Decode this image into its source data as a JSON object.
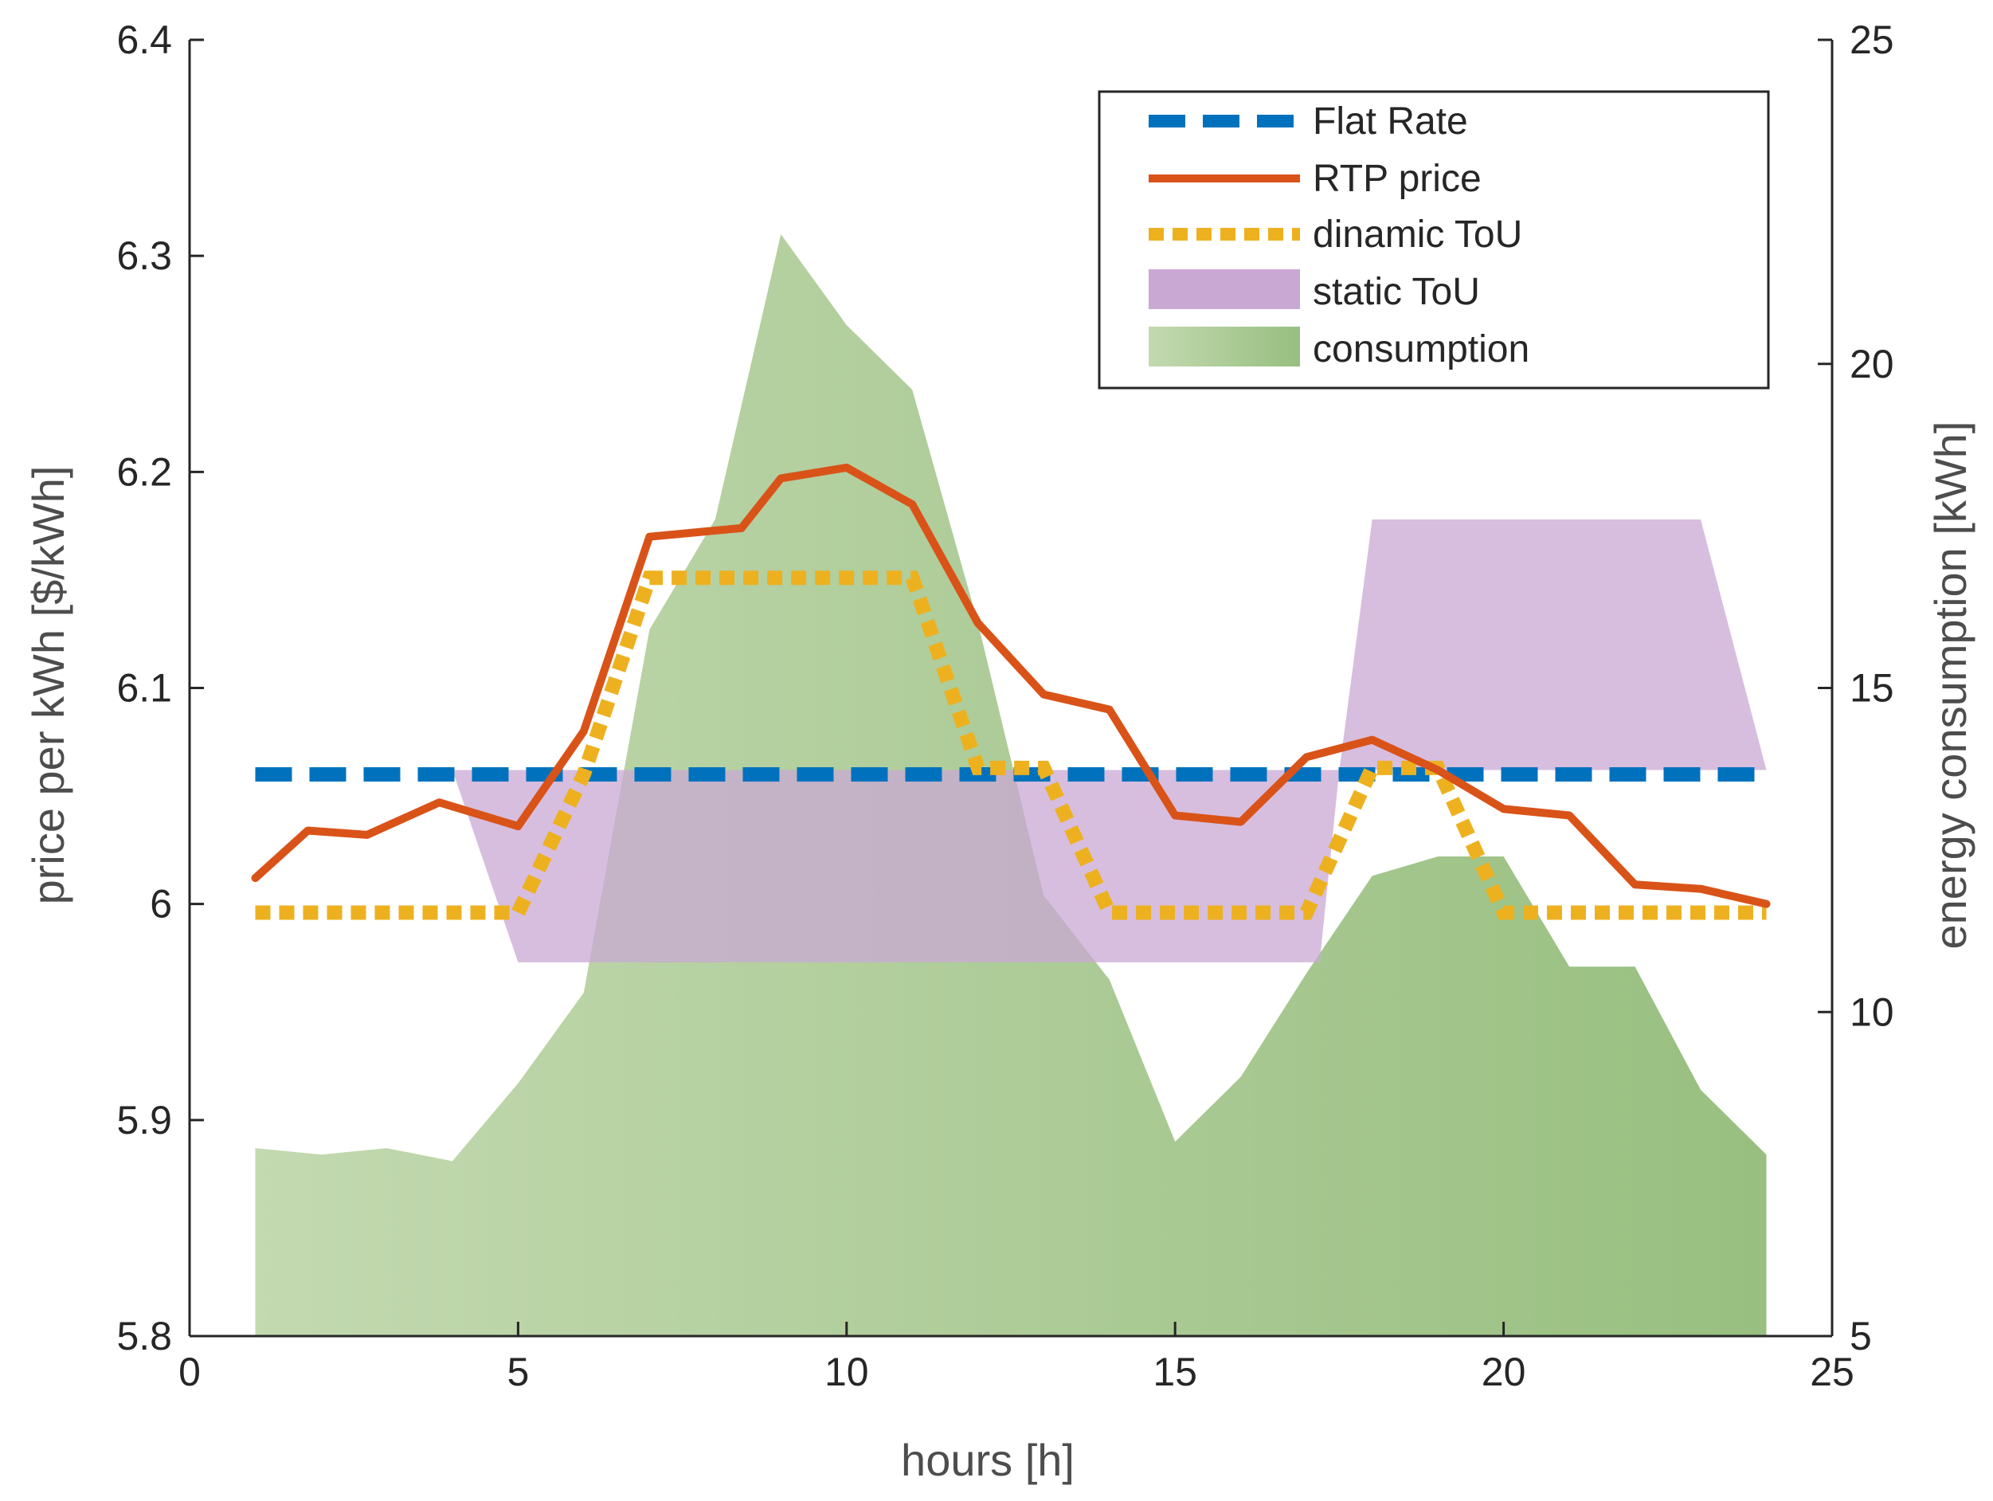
{
  "chart_data": {
    "type": "area",
    "xlabel": "hours [h]",
    "ylabel_left": "price per kWh [$/kWh]",
    "ylabel_right": "energy consumption [kWh]",
    "xlim": [
      0,
      25
    ],
    "ylim_left": [
      5.8,
      6.4
    ],
    "ylim_right": [
      5,
      25
    ],
    "x_ticks": [
      "0",
      "5",
      "10",
      "15",
      "20",
      "25"
    ],
    "y_left_ticks": [
      "5.8",
      "5.9",
      "6",
      "6.1",
      "6.2",
      "6.3",
      "6.4"
    ],
    "y_right_ticks": [
      "5",
      "10",
      "15",
      "20",
      "25"
    ],
    "grid": false,
    "legend_position": "top-right",
    "colors": {
      "flat": "#0072BD",
      "rtp": "#D95319",
      "dynamic": "#EDB120",
      "static": "#C9A8D4",
      "consumption_light": "#C3D9B0",
      "consumption_dark": "#98BF80"
    },
    "series": [
      {
        "name": "Flat Rate",
        "axis": "left",
        "style": "dashed",
        "x": [
          1,
          24
        ],
        "y": [
          6.06,
          6.06
        ]
      },
      {
        "name": "RTP price",
        "axis": "left",
        "style": "solid",
        "x": [
          1,
          1.8,
          2.7,
          3.8,
          5,
          6,
          7,
          8.4,
          9,
          10,
          11,
          12,
          13,
          14,
          15,
          16,
          17,
          18,
          19,
          20,
          21,
          22,
          23,
          24
        ],
        "y": [
          6.012,
          6.034,
          6.032,
          6.047,
          6.036,
          6.08,
          6.17,
          6.174,
          6.197,
          6.202,
          6.185,
          6.13,
          6.097,
          6.09,
          6.041,
          6.038,
          6.068,
          6.076,
          6.062,
          6.044,
          6.041,
          6.009,
          6.007,
          6.0
        ]
      },
      {
        "name": "dinamic ToU",
        "axis": "left",
        "style": "dotted",
        "x": [
          1,
          5,
          6,
          7,
          8,
          11,
          12,
          13,
          14,
          17,
          18,
          19,
          20,
          24
        ],
        "y": [
          5.996,
          5.996,
          6.06,
          6.151,
          6.151,
          6.151,
          6.063,
          6.063,
          5.996,
          5.996,
          6.063,
          6.063,
          5.996,
          5.996
        ]
      },
      {
        "name": "static ToU",
        "axis": "left",
        "style": "band",
        "x": [
          1,
          4,
          5,
          17.2,
          17.5,
          18,
          23,
          24
        ],
        "upper": [
          6.062,
          6.062,
          6.062,
          6.062,
          6.062,
          6.178,
          6.178,
          6.062
        ],
        "lower": [
          6.062,
          6.062,
          5.973,
          5.973,
          6.062,
          6.062,
          6.062,
          6.062
        ]
      },
      {
        "name": "consumption",
        "axis": "right",
        "style": "area",
        "x": [
          1,
          2,
          3,
          4,
          5,
          6,
          7,
          8,
          9,
          10,
          11,
          12,
          13,
          14,
          15,
          16,
          17,
          18,
          19,
          20,
          21,
          22,
          23,
          24
        ],
        "y": [
          7.9,
          7.8,
          7.9,
          7.7,
          8.9,
          10.3,
          15.9,
          17.6,
          22.0,
          20.6,
          19.6,
          16.0,
          11.8,
          10.5,
          8.0,
          9.0,
          10.6,
          12.1,
          12.4,
          12.4,
          10.7,
          10.7,
          8.8,
          7.8
        ]
      }
    ]
  }
}
